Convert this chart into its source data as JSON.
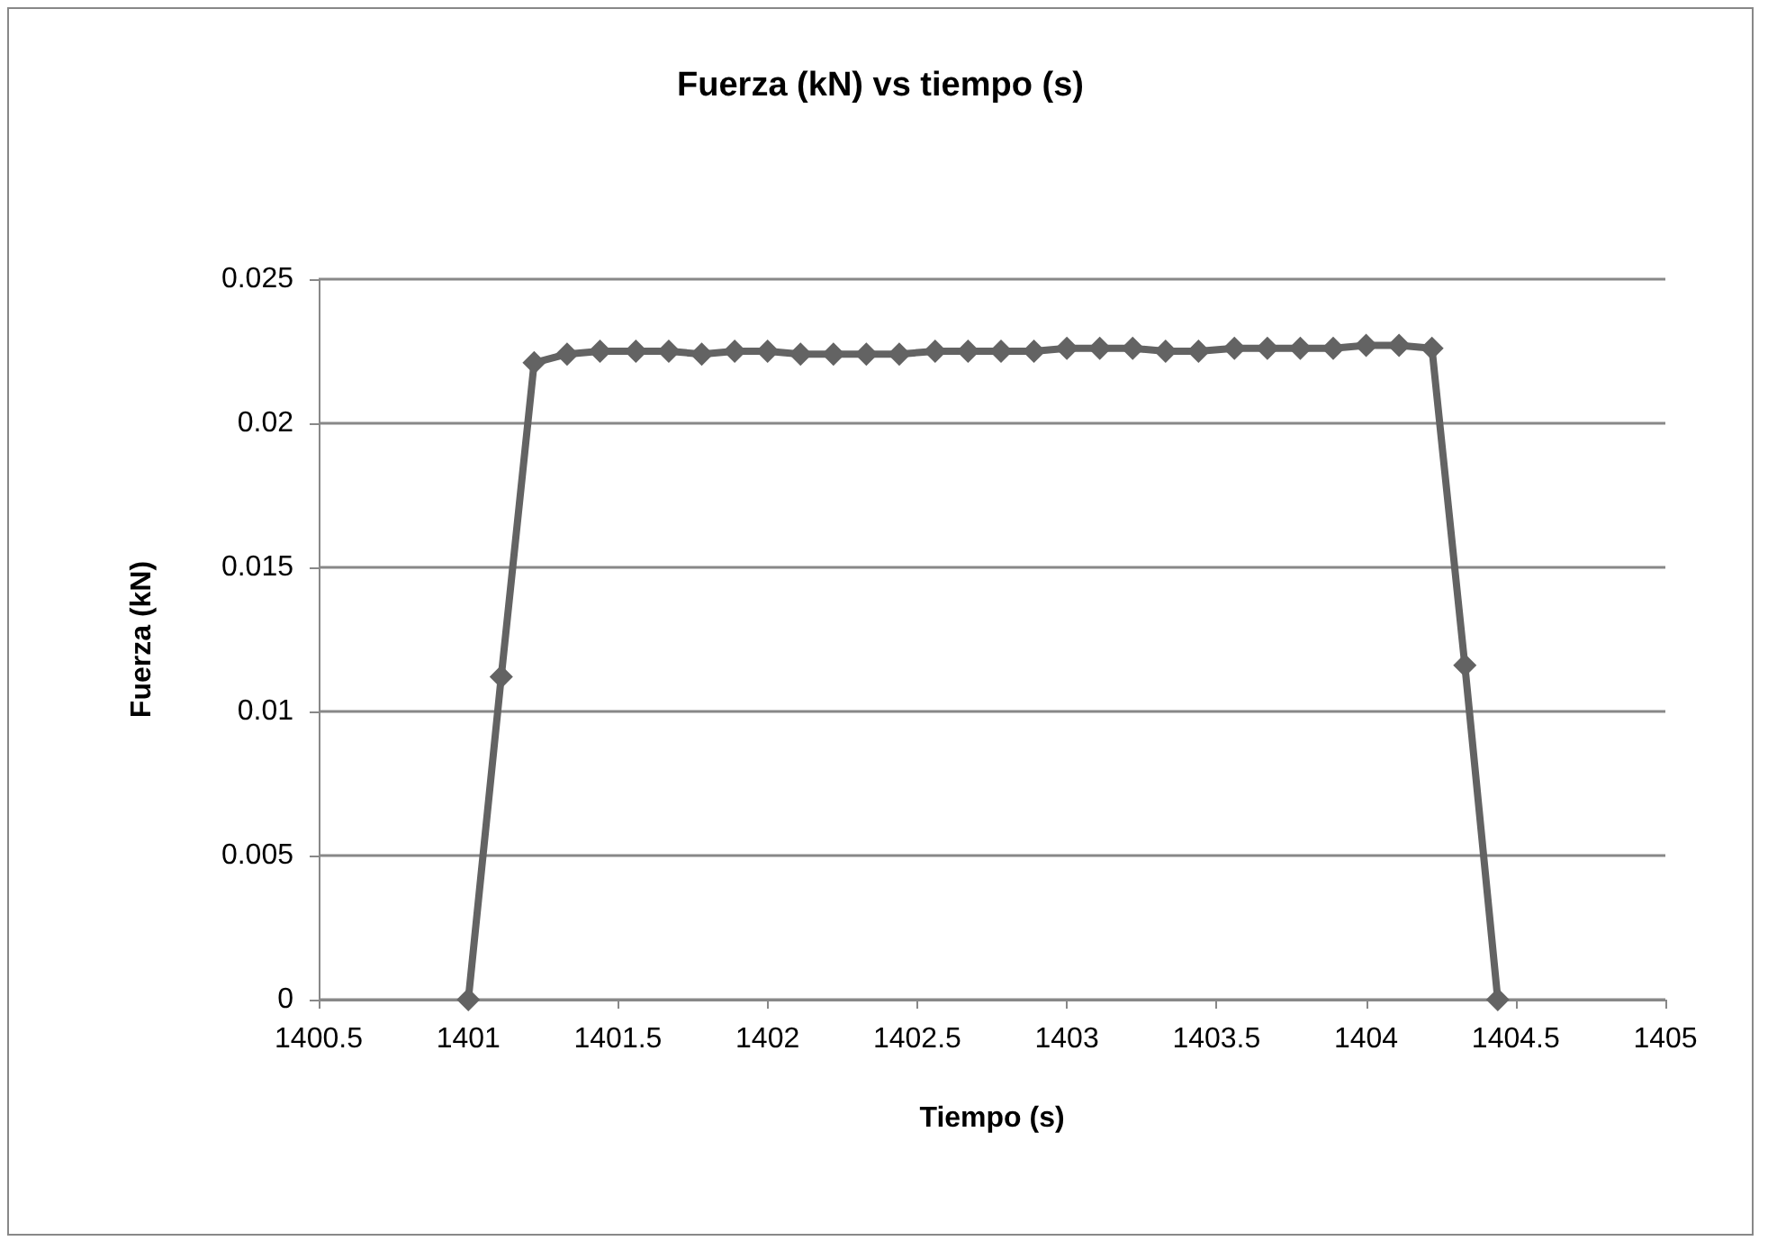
{
  "chart_data": {
    "type": "line",
    "title": "Fuerza (kN) vs tiempo (s)",
    "xlabel": "Tiempo (s)",
    "ylabel": "Fuerza (kN)",
    "x": [
      1401,
      1401.11,
      1401.22,
      1401.33,
      1401.44,
      1401.56,
      1401.67,
      1401.78,
      1401.89,
      1402,
      1402.11,
      1402.22,
      1402.33,
      1402.44,
      1402.56,
      1402.67,
      1402.78,
      1402.89,
      1403,
      1403.11,
      1403.22,
      1403.33,
      1403.44,
      1403.56,
      1403.67,
      1403.78,
      1403.89,
      1404,
      1404.11,
      1404.22,
      1404.33,
      1404.44
    ],
    "series": [
      {
        "color": "#636363",
        "values": [
          0,
          0.0112,
          0.0221,
          0.0224,
          0.0225,
          0.0225,
          0.0225,
          0.0224,
          0.0225,
          0.0225,
          0.0224,
          0.0224,
          0.0224,
          0.0224,
          0.0225,
          0.0225,
          0.0225,
          0.0225,
          0.0226,
          0.0226,
          0.0226,
          0.0225,
          0.0225,
          0.0226,
          0.0226,
          0.0226,
          0.0226,
          0.0227,
          0.0227,
          0.0226,
          0.0116,
          0
        ]
      }
    ],
    "xlim": [
      1400.5,
      1405
    ],
    "xticks": [
      1400.5,
      1401,
      1401.5,
      1402,
      1402.5,
      1403,
      1403.5,
      1404,
      1404.5,
      1405
    ],
    "ylim": [
      0,
      0.025
    ],
    "yticks": [
      0,
      0.005,
      0.01,
      0.015,
      0.02,
      0.025
    ],
    "grid": "y",
    "marker": "diamond",
    "line_style": "solid"
  }
}
